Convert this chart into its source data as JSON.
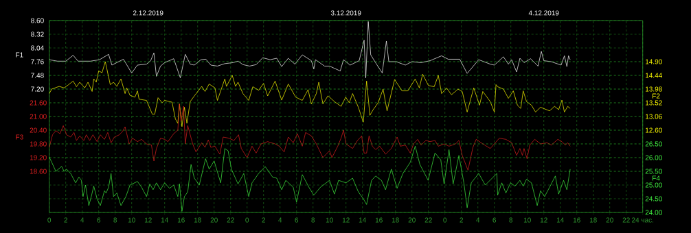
{
  "chart_data": [
    {
      "type": "line",
      "xlim": [
        "2019-12-02T00:00",
        "2019-12-05T00:00"
      ],
      "xticks": [
        {
          "value": "2019-12-02T00:00",
          "label": "0"
        },
        {
          "value": "2019-12-02T02:00",
          "label": "2"
        },
        {
          "value": "2019-12-02T04:00",
          "label": "4"
        },
        {
          "value": "2019-12-02T06:00",
          "label": "6"
        },
        {
          "value": "2019-12-02T08:00",
          "label": "8"
        },
        {
          "value": "2019-12-02T10:00",
          "label": "10"
        },
        {
          "value": "2019-12-02T12:00",
          "label": "12"
        },
        {
          "value": "2019-12-02T14:00",
          "label": "14"
        },
        {
          "value": "2019-12-02T16:00",
          "label": "16"
        },
        {
          "value": "2019-12-02T18:00",
          "label": "18"
        },
        {
          "value": "2019-12-02T20:00",
          "label": "20"
        },
        {
          "value": "2019-12-02T22:00",
          "label": "22"
        },
        {
          "value": "2019-12-03T00:00",
          "label": "0"
        },
        {
          "value": "2019-12-03T02:00",
          "label": "2"
        },
        {
          "value": "2019-12-03T04:00",
          "label": "4"
        },
        {
          "value": "2019-12-03T06:00",
          "label": "6"
        },
        {
          "value": "2019-12-03T08:00",
          "label": "8"
        },
        {
          "value": "2019-12-03T10:00",
          "label": "10"
        },
        {
          "value": "2019-12-03T12:00",
          "label": "12"
        },
        {
          "value": "2019-12-03T14:00",
          "label": "14"
        },
        {
          "value": "2019-12-03T16:00",
          "label": "16"
        },
        {
          "value": "2019-12-03T18:00",
          "label": "18"
        },
        {
          "value": "2019-12-03T20:00",
          "label": "20"
        },
        {
          "value": "2019-12-03T22:00",
          "label": "22"
        },
        {
          "value": "2019-12-04T00:00",
          "label": "0"
        },
        {
          "value": "2019-12-04T02:00",
          "label": "2"
        },
        {
          "value": "2019-12-04T04:00",
          "label": "4"
        },
        {
          "value": "2019-12-04T06:00",
          "label": "6"
        },
        {
          "value": "2019-12-04T08:00",
          "label": "8"
        },
        {
          "value": "2019-12-04T10:00",
          "label": "10"
        },
        {
          "value": "2019-12-04T12:00",
          "label": "12"
        },
        {
          "value": "2019-12-04T14:00",
          "label": "14"
        },
        {
          "value": "2019-12-04T16:00",
          "label": "16"
        },
        {
          "value": "2019-12-04T18:00",
          "label": "18"
        },
        {
          "value": "2019-12-04T20:00",
          "label": "20"
        },
        {
          "value": "2019-12-04T22:00",
          "label": "22"
        },
        {
          "value": "2019-12-05T00:00",
          "label": "24 час."
        }
      ],
      "x2lim": [
        "2019-12-02T00:00",
        "2019-12-05T00:00"
      ],
      "x2ticks": [
        {
          "value": "2019-12-02T12:00",
          "label": "2.12.2019"
        },
        {
          "value": "2019-12-03T12:00",
          "label": "3.12.2019"
        },
        {
          "value": "2019-12-04T12:00",
          "label": "4.12.2019"
        }
      ],
      "ylabel": "F1",
      "ylim": [
        4.68,
        8.6
      ],
      "yticks": [
        {
          "value": 8.6,
          "label": "8.60"
        },
        8.32,
        8.04,
        7.76,
        7.48,
        {
          "value": 7.2,
          "label": "7.20"
        }
      ],
      "y2label": "F2",
      "y2lim": [
        9.84,
        16.28
      ],
      "y2ticks": [
        {
          "value": 14.9,
          "label": "14.90"
        },
        14.44,
        13.98,
        13.52,
        13.06,
        {
          "value": 12.6,
          "label": "12.60"
        }
      ],
      "grid": true,
      "series": [
        {
          "color": "#ffffff",
          "x": [
            "2019-12-02T00:00",
            "2019-12-02T01:00",
            "2019-12-02T02:00",
            "2019-12-02T02:54",
            "2019-12-02T03:30",
            "2019-12-02T05:00",
            "2019-12-02T06:06",
            "2019-12-02T07:12",
            "2019-12-02T07:36",
            "2019-12-02T09:00",
            "2019-12-02T10:00",
            "2019-12-02T10:42",
            "2019-12-02T11:48",
            "2019-12-02T12:18",
            "2019-12-02T12:42",
            "2019-12-02T13:00",
            "2019-12-02T13:30",
            "2019-12-02T14:00",
            "2019-12-02T15:06",
            "2019-12-02T15:54",
            "2019-12-02T16:30",
            "2019-12-02T17:06",
            "2019-12-02T17:36",
            "2019-12-02T18:24",
            "2019-12-02T19:00",
            "2019-12-02T19:36",
            "2019-12-02T20:24",
            "2019-12-02T21:18",
            "2019-12-02T22:18",
            "2019-12-02T22:54",
            "2019-12-02T23:30",
            "2019-12-03T00:18",
            "2019-12-03T01:06",
            "2019-12-03T01:54",
            "2019-12-03T02:48",
            "2019-12-03T03:36",
            "2019-12-03T04:12",
            "2019-12-03T05:00",
            "2019-12-03T05:48",
            "2019-12-03T06:42",
            "2019-12-03T07:48",
            "2019-12-03T08:06",
            "2019-12-03T08:18",
            "2019-12-03T09:24",
            "2019-12-03T10:00",
            "2019-12-03T11:18",
            "2019-12-03T11:42",
            "2019-12-03T12:30",
            "2019-12-03T13:36",
            "2019-12-03T14:12",
            "2019-12-03T14:24",
            "2019-12-03T14:42",
            "2019-12-03T15:00",
            "2019-12-03T15:42",
            "2019-12-03T16:24",
            "2019-12-03T16:54",
            "2019-12-03T17:12",
            "2019-12-03T18:06",
            "2019-12-03T19:12",
            "2019-12-03T20:00",
            "2019-12-03T21:06",
            "2019-12-03T22:12",
            "2019-12-03T23:36",
            "2019-12-04T00:24",
            "2019-12-04T01:48",
            "2019-12-04T02:42",
            "2019-12-04T04:06",
            "2019-12-04T05:30",
            "2019-12-04T06:00",
            "2019-12-04T07:06",
            "2019-12-04T07:42",
            "2019-12-04T08:06",
            "2019-12-04T08:42",
            "2019-12-04T09:06",
            "2019-12-04T09:36",
            "2019-12-04T10:24",
            "2019-12-04T11:18",
            "2019-12-04T11:42",
            "2019-12-04T12:00",
            "2019-12-04T12:54",
            "2019-12-04T14:06",
            "2019-12-04T14:30",
            "2019-12-04T14:48",
            "2019-12-04T15:00",
            "2019-12-04T15:12"
          ],
          "values": [
            7.8,
            7.77,
            7.77,
            7.89,
            7.77,
            7.77,
            7.8,
            7.91,
            7.69,
            7.81,
            7.53,
            7.69,
            7.71,
            7.78,
            7.94,
            7.46,
            7.67,
            7.74,
            7.82,
            7.43,
            7.91,
            7.71,
            7.69,
            7.8,
            7.81,
            7.69,
            7.67,
            7.72,
            7.74,
            7.77,
            7.7,
            7.67,
            7.7,
            7.84,
            7.8,
            7.83,
            7.66,
            7.83,
            7.71,
            7.9,
            7.78,
            7.61,
            7.8,
            7.67,
            7.67,
            7.57,
            7.8,
            7.69,
            7.78,
            8.2,
            7.43,
            8.58,
            7.9,
            7.71,
            7.53,
            8.18,
            7.76,
            7.76,
            7.69,
            7.76,
            7.74,
            7.78,
            7.88,
            7.81,
            7.81,
            7.52,
            7.8,
            7.71,
            7.69,
            7.86,
            7.71,
            7.8,
            7.55,
            7.83,
            7.74,
            7.82,
            7.67,
            7.97,
            7.78,
            7.76,
            7.69,
            7.88,
            7.66,
            7.88,
            7.8
          ]
        },
        {
          "axis": "y2",
          "color": "#ffff00",
          "x": [
            "2019-12-02T00:00",
            "2019-12-02T00:18",
            "2019-12-02T01:12",
            "2019-12-02T01:48",
            "2019-12-02T02:18",
            "2019-12-02T02:54",
            "2019-12-02T03:18",
            "2019-12-02T03:42",
            "2019-12-02T04:18",
            "2019-12-02T04:42",
            "2019-12-02T05:12",
            "2019-12-02T05:24",
            "2019-12-02T05:42",
            "2019-12-02T06:00",
            "2019-12-02T06:24",
            "2019-12-02T06:48",
            "2019-12-02T07:24",
            "2019-12-02T07:48",
            "2019-12-02T08:12",
            "2019-12-02T08:42",
            "2019-12-02T09:12",
            "2019-12-02T09:24",
            "2019-12-02T09:48",
            "2019-12-02T10:24",
            "2019-12-02T10:42",
            "2019-12-02T10:54",
            "2019-12-02T11:48",
            "2019-12-02T12:30",
            "2019-12-02T12:48",
            "2019-12-02T13:12",
            "2019-12-02T13:42",
            "2019-12-02T14:00",
            "2019-12-02T14:54",
            "2019-12-02T15:18",
            "2019-12-02T15:36",
            "2019-12-02T15:48",
            "2019-12-02T16:06",
            "2019-12-02T16:24",
            "2019-12-02T16:42",
            "2019-12-02T17:06",
            "2019-12-02T17:36",
            "2019-12-02T18:30",
            "2019-12-02T18:54",
            "2019-12-02T19:24",
            "2019-12-02T20:06",
            "2019-12-02T20:24",
            "2019-12-02T21:18",
            "2019-12-02T21:30",
            "2019-12-02T22:12",
            "2019-12-02T22:36",
            "2019-12-02T22:54",
            "2019-12-02T23:30",
            "2019-12-03T00:12",
            "2019-12-03T00:42",
            "2019-12-03T01:24",
            "2019-12-03T02:00",
            "2019-12-03T02:30",
            "2019-12-03T03:24",
            "2019-12-03T04:12",
            "2019-12-03T05:00",
            "2019-12-03T05:54",
            "2019-12-03T06:42",
            "2019-12-03T07:24",
            "2019-12-03T07:48",
            "2019-12-03T08:24",
            "2019-12-03T08:42",
            "2019-12-03T09:12",
            "2019-12-03T09:48",
            "2019-12-03T10:00",
            "2019-12-03T10:36",
            "2019-12-03T11:24",
            "2019-12-03T11:58",
            "2019-12-03T12:24",
            "2019-12-03T12:48",
            "2019-12-03T13:30",
            "2019-12-03T14:06",
            "2019-12-03T14:30",
            "2019-12-03T14:54",
            "2019-12-03T15:18",
            "2019-12-03T15:54",
            "2019-12-03T16:30",
            "2019-12-03T16:59",
            "2019-12-03T17:54",
            "2019-12-03T18:48",
            "2019-12-03T19:30",
            "2019-12-03T20:24",
            "2019-12-03T20:54",
            "2019-12-03T21:18",
            "2019-12-03T22:00",
            "2019-12-03T22:42",
            "2019-12-03T23:12",
            "2019-12-03T23:36",
            "2019-12-04T00:12",
            "2019-12-04T00:48",
            "2019-12-04T01:36",
            "2019-12-04T02:06",
            "2019-12-04T02:42",
            "2019-12-04T03:30",
            "2019-12-04T04:12",
            "2019-12-04T04:36",
            "2019-12-04T05:30",
            "2019-12-04T06:00",
            "2019-12-04T06:12",
            "2019-12-04T06:24",
            "2019-12-04T07:06",
            "2019-12-04T07:42",
            "2019-12-04T08:18",
            "2019-12-04T08:48",
            "2019-12-04T09:12",
            "2019-12-04T09:30",
            "2019-12-04T09:54",
            "2019-12-04T10:30",
            "2019-12-04T11:00",
            "2019-12-04T11:36",
            "2019-12-04T12:42",
            "2019-12-04T13:18",
            "2019-12-04T13:48",
            "2019-12-04T14:12",
            "2019-12-04T14:30",
            "2019-12-04T14:54",
            "2019-12-04T15:12"
          ],
          "values": [
            13.83,
            13.98,
            14.07,
            14.02,
            14.12,
            14.25,
            14.06,
            14.21,
            14.02,
            14.21,
            13.9,
            14.32,
            14.21,
            14.59,
            14.53,
            14.9,
            14.13,
            14.21,
            14.07,
            14.32,
            13.83,
            14.02,
            13.77,
            13.71,
            13.92,
            13.64,
            13.6,
            13.14,
            13.14,
            13.69,
            13.52,
            13.6,
            13.54,
            12.98,
            12.83,
            13.48,
            12.72,
            13.37,
            12.83,
            13.56,
            13.75,
            14.07,
            13.9,
            14.15,
            14.02,
            13.6,
            14.32,
            14.07,
            14.44,
            14.07,
            14.21,
            13.83,
            13.6,
            14.06,
            13.94,
            14.17,
            13.75,
            14.25,
            13.61,
            14.15,
            13.71,
            13.6,
            13.96,
            13.48,
            13.83,
            14.21,
            13.48,
            13.75,
            13.71,
            13.56,
            13.4,
            13.71,
            13.52,
            13.83,
            13.37,
            12.87,
            14.25,
            13.1,
            13.29,
            13.52,
            13.98,
            13.25,
            14.3,
            13.92,
            13.92,
            14.32,
            14.02,
            14.48,
            14.1,
            14.06,
            14.44,
            13.83,
            14.02,
            13.79,
            13.98,
            13.9,
            13.21,
            14.02,
            13.44,
            13.9,
            13.56,
            13.21,
            14.13,
            14.06,
            13.98,
            13.67,
            13.92,
            13.44,
            13.33,
            13.92,
            13.56,
            13.44,
            13.21,
            13.37,
            13.25,
            13.4,
            13.29,
            13.61,
            13.21,
            13.4,
            13.33
          ]
        }
      ]
    },
    {
      "type": "line",
      "xlim": [
        "2019-12-02T00:00",
        "2019-12-05T00:00"
      ],
      "tick_labels": "y",
      "ylabel": "F3",
      "ylim": [
        16.8,
        25.2
      ],
      "yticks": [
        {
          "value": 21.6,
          "label": "21.60"
        },
        {
          "value": 21.0,
          "label": "21.00"
        },
        {
          "value": 20.4,
          "label": "20.40"
        },
        {
          "value": 19.8,
          "label": "19.80"
        },
        {
          "value": 19.2,
          "label": "19.20"
        },
        {
          "value": 18.6,
          "label": "18.60"
        }
      ],
      "y2label": "F4",
      "y2lim": [
        24.0,
        31.0
      ],
      "y2ticks": [
        {
          "value": 26.5,
          "label": "26.50"
        },
        {
          "value": 26.0,
          "label": "26.00"
        },
        {
          "value": 25.5,
          "label": "25.50"
        },
        {
          "value": 25.0,
          "label": "25.00"
        },
        {
          "value": 24.5,
          "label": "24.50"
        },
        {
          "value": 24.0,
          "label": "24.00"
        }
      ],
      "grid": true,
      "series": [
        {
          "color": "#e02020",
          "x": [
            "2019-12-02T00:00",
            "2019-12-02T00:24",
            "2019-12-02T00:48",
            "2019-12-02T01:18",
            "2019-12-02T01:42",
            "2019-12-02T02:06",
            "2019-12-02T02:36",
            "2019-12-02T03:00",
            "2019-12-02T03:18",
            "2019-12-02T03:42",
            "2019-12-02T04:12",
            "2019-12-02T04:30",
            "2019-12-02T04:54",
            "2019-12-02T05:18",
            "2019-12-02T05:48",
            "2019-12-02T06:12",
            "2019-12-02T06:42",
            "2019-12-02T07:06",
            "2019-12-02T07:30",
            "2019-12-02T07:54",
            "2019-12-02T08:30",
            "2019-12-02T08:54",
            "2019-12-02T09:12",
            "2019-12-02T09:42",
            "2019-12-02T10:06",
            "2019-12-02T10:42",
            "2019-12-02T11:12",
            "2019-12-02T11:48",
            "2019-12-02T12:24",
            "2019-12-02T12:42",
            "2019-12-02T13:00",
            "2019-12-02T13:30",
            "2019-12-02T14:00",
            "2019-12-02T14:24",
            "2019-12-02T15:06",
            "2019-12-02T15:36",
            "2019-12-02T15:48",
            "2019-12-02T16:00",
            "2019-12-02T16:18",
            "2019-12-02T16:30",
            "2019-12-02T16:48",
            "2019-12-02T17:24",
            "2019-12-02T17:48",
            "2019-12-02T18:30",
            "2019-12-02T18:54",
            "2019-12-02T19:18",
            "2019-12-02T19:36",
            "2019-12-02T20:06",
            "2019-12-02T20:42",
            "2019-12-02T21:06",
            "2019-12-02T21:48",
            "2019-12-02T22:24",
            "2019-12-02T22:58",
            "2019-12-02T23:18",
            "2019-12-03T00:00",
            "2019-12-03T00:36",
            "2019-12-03T01:06",
            "2019-12-03T01:42",
            "2019-12-03T02:30",
            "2019-12-03T03:24",
            "2019-12-03T03:54",
            "2019-12-03T04:30",
            "2019-12-03T05:00",
            "2019-12-03T05:36",
            "2019-12-03T06:06",
            "2019-12-03T06:42",
            "2019-12-03T07:06",
            "2019-12-03T07:48",
            "2019-12-03T08:24",
            "2019-12-03T09:12",
            "2019-12-03T10:00",
            "2019-12-03T10:18",
            "2019-12-03T11:00",
            "2019-12-03T11:24",
            "2019-12-03T11:42",
            "2019-12-03T12:00",
            "2019-12-03T12:48",
            "2019-12-03T13:24",
            "2019-12-03T13:54",
            "2019-12-03T14:12",
            "2019-12-03T14:30",
            "2019-12-03T14:48",
            "2019-12-03T15:12",
            "2019-12-03T15:36",
            "2019-12-03T16:06",
            "2019-12-03T16:48",
            "2019-12-03T17:30",
            "2019-12-03T18:12",
            "2019-12-03T18:36",
            "2019-12-03T19:12",
            "2019-12-03T19:48",
            "2019-12-03T20:12",
            "2019-12-03T20:42",
            "2019-12-03T21:06",
            "2019-12-03T21:42",
            "2019-12-03T22:12",
            "2019-12-03T22:48",
            "2019-12-03T23:12",
            "2019-12-03T23:54",
            "2019-12-04T00:30",
            "2019-12-04T01:18",
            "2019-12-04T01:42",
            "2019-12-04T02:06",
            "2019-12-04T02:48",
            "2019-12-04T03:24",
            "2019-12-04T03:48",
            "2019-12-04T04:36",
            "2019-12-04T05:30",
            "2019-12-04T06:36",
            "2019-12-04T07:24",
            "2019-12-04T08:06",
            "2019-12-04T08:42",
            "2019-12-04T09:06",
            "2019-12-04T09:24",
            "2019-12-04T09:36",
            "2019-12-04T09:58",
            "2019-12-04T10:18",
            "2019-12-04T10:54",
            "2019-12-04T11:36",
            "2019-12-04T12:24",
            "2019-12-04T12:54",
            "2019-12-04T13:42",
            "2019-12-04T14:12",
            "2019-12-04T14:36",
            "2019-12-04T14:54",
            "2019-12-04T15:12"
          ],
          "values": [
            19.65,
            20.2,
            20.38,
            20.25,
            20.6,
            20.2,
            20.1,
            20.3,
            19.95,
            20.15,
            19.95,
            20.2,
            19.95,
            20.2,
            19.9,
            20.2,
            20.0,
            20.3,
            19.85,
            20.1,
            20.2,
            20.35,
            20.55,
            19.8,
            20.05,
            19.9,
            20.0,
            19.8,
            19.75,
            19.05,
            19.6,
            20.05,
            20.0,
            19.9,
            20.25,
            20.4,
            21.55,
            20.8,
            21.45,
            19.8,
            20.6,
            19.8,
            19.45,
            19.85,
            19.65,
            19.98,
            19.65,
            19.7,
            19.35,
            20.1,
            20.05,
            19.95,
            20.2,
            19.6,
            19.2,
            19.7,
            19.4,
            19.8,
            19.9,
            19.8,
            19.7,
            19.45,
            20.1,
            19.85,
            20.25,
            19.7,
            20.3,
            20.15,
            19.8,
            19.2,
            19.5,
            19.2,
            19.7,
            20.05,
            20.4,
            19.8,
            19.6,
            19.95,
            20.15,
            19.4,
            19.4,
            20.15,
            19.7,
            19.55,
            19.7,
            19.35,
            19.6,
            20.1,
            19.7,
            19.75,
            19.4,
            19.8,
            20.0,
            19.75,
            19.95,
            19.9,
            19.95,
            19.7,
            19.8,
            19.7,
            19.8,
            19.95,
            19.3,
            18.65,
            19.65,
            20.0,
            19.8,
            19.6,
            20.05,
            20.0,
            19.85,
            19.3,
            19.6,
            19.3,
            19.6,
            19.15,
            19.75,
            20.0,
            19.8,
            19.85,
            19.75,
            20.0,
            19.9,
            19.75,
            19.85,
            19.7
          ]
        },
        {
          "axis": "y2",
          "color": "#40f040",
          "x": [
            "2019-12-02T00:00",
            "2019-12-02T00:18",
            "2019-12-02T00:48",
            "2019-12-02T01:30",
            "2019-12-02T01:48",
            "2019-12-02T02:06",
            "2019-12-02T02:36",
            "2019-12-02T03:12",
            "2019-12-02T03:36",
            "2019-12-02T03:54",
            "2019-12-02T04:06",
            "2019-12-02T04:24",
            "2019-12-02T04:48",
            "2019-12-02T05:06",
            "2019-12-02T05:24",
            "2019-12-02T05:48",
            "2019-12-02T06:12",
            "2019-12-02T06:42",
            "2019-12-02T06:54",
            "2019-12-02T07:12",
            "2019-12-02T07:30",
            "2019-12-02T07:48",
            "2019-12-02T08:12",
            "2019-12-02T08:42",
            "2019-12-02T09:18",
            "2019-12-02T09:48",
            "2019-12-02T10:42",
            "2019-12-02T11:12",
            "2019-12-02T11:48",
            "2019-12-02T12:12",
            "2019-12-02T12:36",
            "2019-12-02T13:00",
            "2019-12-02T13:30",
            "2019-12-02T14:00",
            "2019-12-02T14:36",
            "2019-12-02T15:06",
            "2019-12-02T15:36",
            "2019-12-02T15:48",
            "2019-12-02T16:06",
            "2019-12-02T16:24",
            "2019-12-02T16:48",
            "2019-12-02T17:12",
            "2019-12-02T17:36",
            "2019-12-02T18:12",
            "2019-12-02T18:58",
            "2019-12-02T19:24",
            "2019-12-02T20:00",
            "2019-12-02T20:48",
            "2019-12-02T21:18",
            "2019-12-02T21:42",
            "2019-12-02T22:06",
            "2019-12-02T22:54",
            "2019-12-02T23:36",
            "2019-12-03T00:12",
            "2019-12-03T00:36",
            "2019-12-03T01:24",
            "2019-12-03T02:12",
            "2019-12-03T03:06",
            "2019-12-03T03:36",
            "2019-12-03T04:12",
            "2019-12-03T04:42",
            "2019-12-03T05:36",
            "2019-12-03T06:00",
            "2019-12-03T06:42",
            "2019-12-03T07:30",
            "2019-12-03T08:06",
            "2019-12-03T08:54",
            "2019-12-03T10:00",
            "2019-12-03T10:36",
            "2019-12-03T11:06",
            "2019-12-03T12:00",
            "2019-12-03T12:48",
            "2019-12-03T13:30",
            "2019-12-03T14:06",
            "2019-12-03T14:30",
            "2019-12-03T15:06",
            "2019-12-03T15:36",
            "2019-12-03T16:18",
            "2019-12-03T16:48",
            "2019-12-03T17:30",
            "2019-12-03T18:12",
            "2019-12-03T18:54",
            "2019-12-03T19:48",
            "2019-12-03T20:24",
            "2019-12-03T20:58",
            "2019-12-03T21:24",
            "2019-12-03T21:58",
            "2019-12-03T22:48",
            "2019-12-03T23:30",
            "2019-12-03T23:54",
            "2019-12-04T00:30",
            "2019-12-04T01:00",
            "2019-12-04T01:42",
            "2019-12-04T02:18",
            "2019-12-04T02:42",
            "2019-12-04T03:12",
            "2019-12-04T04:06",
            "2019-12-04T04:54",
            "2019-12-04T06:18",
            "2019-12-04T06:24",
            "2019-12-04T06:54",
            "2019-12-04T07:24",
            "2019-12-04T07:58",
            "2019-12-04T08:30",
            "2019-12-04T09:06",
            "2019-12-04T09:30",
            "2019-12-04T09:54",
            "2019-12-04T10:30",
            "2019-12-04T11:12",
            "2019-12-04T11:36",
            "2019-12-04T12:06",
            "2019-12-04T12:42",
            "2019-12-04T13:24",
            "2019-12-04T13:48",
            "2019-12-04T14:24",
            "2019-12-04T14:48",
            "2019-12-04T15:12"
          ],
          "values": [
            26.02,
            25.83,
            25.5,
            25.68,
            25.5,
            25.58,
            25.42,
            25.08,
            25.29,
            25.17,
            24.58,
            25.0,
            24.25,
            24.58,
            24.96,
            24.5,
            24.25,
            24.79,
            24.71,
            24.92,
            25.42,
            24.58,
            24.71,
            24.25,
            24.58,
            25.0,
            25.13,
            24.92,
            24.58,
            25.04,
            24.83,
            25.08,
            24.83,
            25.08,
            24.88,
            25.0,
            24.58,
            25.04,
            24.04,
            24.58,
            24.75,
            25.75,
            25.25,
            25.0,
            25.96,
            25.58,
            25.88,
            25.08,
            26.33,
            26.25,
            25.58,
            25.04,
            25.42,
            24.58,
            25.08,
            25.42,
            25.67,
            25.29,
            25.25,
            24.83,
            25.17,
            24.92,
            24.38,
            25.38,
            24.92,
            24.63,
            24.92,
            25.17,
            24.67,
            25.17,
            25.08,
            25.25,
            24.75,
            24.5,
            24.29,
            25.17,
            25.33,
            25.17,
            24.83,
            25.58,
            24.88,
            25.42,
            25.83,
            26.42,
            25.75,
            25.5,
            25.17,
            26.17,
            25.92,
            25.04,
            26.29,
            25.04,
            26.08,
            25.08,
            24.17,
            25.08,
            25.42,
            25.0,
            25.42,
            24.63,
            25.08,
            24.71,
            25.08,
            24.96,
            25.17,
            24.96,
            25.21,
            25.08,
            24.25,
            24.79,
            24.58,
            24.92,
            25.33,
            24.67,
            25.17,
            24.83,
            25.58
          ]
        }
      ]
    }
  ]
}
